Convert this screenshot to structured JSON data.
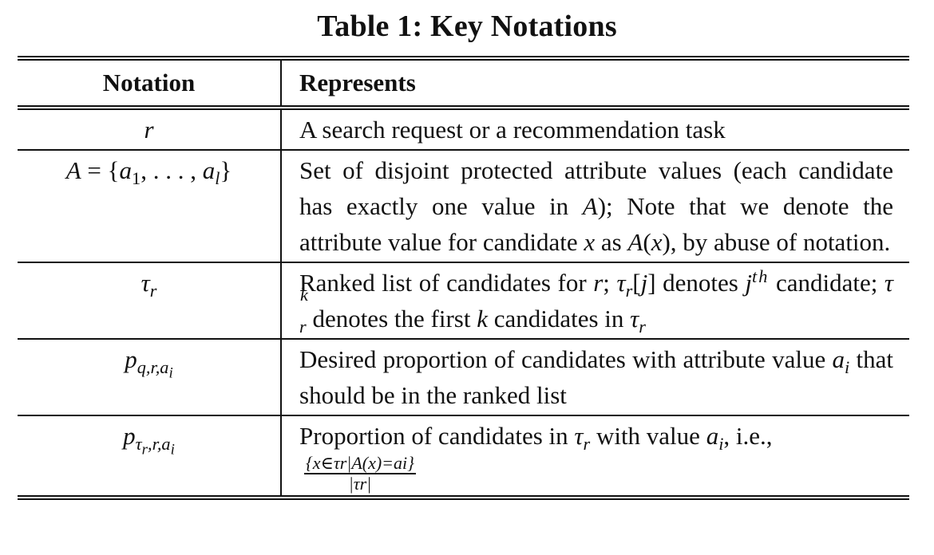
{
  "caption": "Table 1: Key Notations",
  "headers": {
    "notation": "Notation",
    "represents": "Represents"
  },
  "rows": [
    {
      "notation": "r",
      "represents": "A search request or a recommendation task"
    },
    {
      "notation": "A = {a1, . . . , al}",
      "represents": "Set of disjoint protected attribute values (each candidate has exactly one value in A); Note that we denote the attribute value for candidate x as A(x), by abuse of notation."
    },
    {
      "notation": "τr",
      "represents": "Ranked list of candidates for r; τr[j] denotes jth candidate; τrk denotes the first k candidates in τr"
    },
    {
      "notation": "pq,r,ai",
      "represents": "Desired proportion of candidates with attribute value ai that should be in the ranked list"
    },
    {
      "notation": "pτr,r,ai",
      "represents": "Proportion of candidates in τr with value ai, i.e.,",
      "fraction": {
        "numerator": "{x∈τr|A(x)=ai}",
        "denominator": "|τr|"
      }
    }
  ]
}
